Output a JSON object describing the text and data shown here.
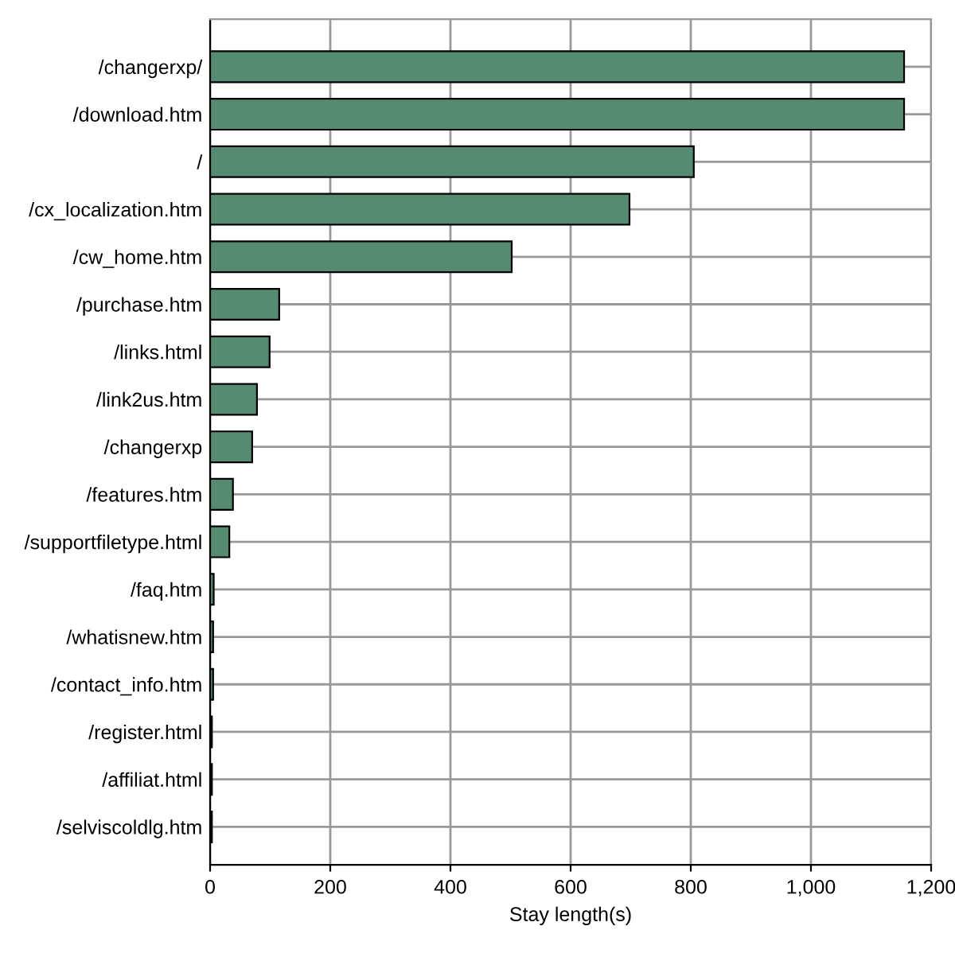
{
  "chart_data": {
    "type": "bar",
    "orientation": "horizontal",
    "xlabel": "Stay length(s)",
    "categories": [
      "/changerxp/",
      "/download.htm",
      "/",
      "/cx_localization.htm",
      "/cw_home.htm",
      "/purchase.htm",
      "/links.html",
      "/link2us.htm",
      "/changerxp",
      "/features.htm",
      "/supportfiletype.html",
      "/faq.htm",
      "/whatisnew.htm",
      "/contact_info.htm",
      "/register.html",
      "/affiliat.html",
      "/selviscoldlg.htm"
    ],
    "values": [
      1155,
      1155,
      805,
      698,
      502,
      115,
      99,
      78,
      70,
      38,
      32,
      6,
      5,
      5,
      3,
      3,
      3
    ],
    "color": "#558b70",
    "xlim": [
      0,
      1200
    ],
    "xticks": [
      0,
      200,
      400,
      600,
      800,
      {
        "value": 1000,
        "label": "1,000"
      },
      {
        "value": 1200,
        "label": "1,200"
      }
    ],
    "grid": true
  }
}
